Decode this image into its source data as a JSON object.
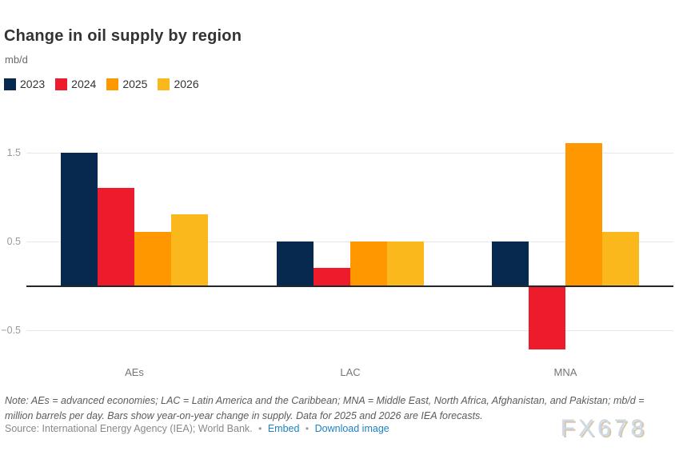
{
  "header": {
    "title": "Change in oil supply by region",
    "unit": "mb/d"
  },
  "chart_data": {
    "type": "bar",
    "categories": [
      "AEs",
      "LAC",
      "MNA"
    ],
    "series": [
      {
        "name": "2023",
        "color": "#08294F",
        "values": [
          1.5,
          0.5,
          0.5
        ]
      },
      {
        "name": "2024",
        "color": "#ED1C2D",
        "values": [
          1.1,
          0.2,
          -0.7
        ]
      },
      {
        "name": "2025",
        "color": "#FF9800",
        "values": [
          0.6,
          0.5,
          1.6
        ]
      },
      {
        "name": "2026",
        "color": "#FBB81D",
        "values": [
          0.8,
          0.5,
          0.6
        ]
      }
    ],
    "title": "Change in oil supply by region",
    "xlabel": "",
    "ylabel": "mb/d",
    "yticks": [
      1.5,
      0.5,
      -0.5
    ],
    "ylim": [
      -0.9,
      1.9
    ],
    "grid": true,
    "legend_position": "top",
    "zero_line": true
  },
  "footer": {
    "note": "Note: AEs = advanced economies; LAC = Latin America and the Caribbean; MNA = Middle East, North Africa, Afghanistan, and Pakistan; mb/d = million barrels per day. Bars show year-on-year change in supply. Data for 2025 and 2026 are IEA forecasts.",
    "source": "Source: International Energy Agency (IEA); World Bank.",
    "separator": "•",
    "embed_label": "Embed",
    "download_label": "Download image"
  },
  "watermark": {
    "text": "FX678"
  },
  "colors": {
    "gridline": "#e8e8e8",
    "zero_line": "#24262e",
    "tick_label": "#999999",
    "category_label": "#757575",
    "link": "#1d81c4"
  }
}
